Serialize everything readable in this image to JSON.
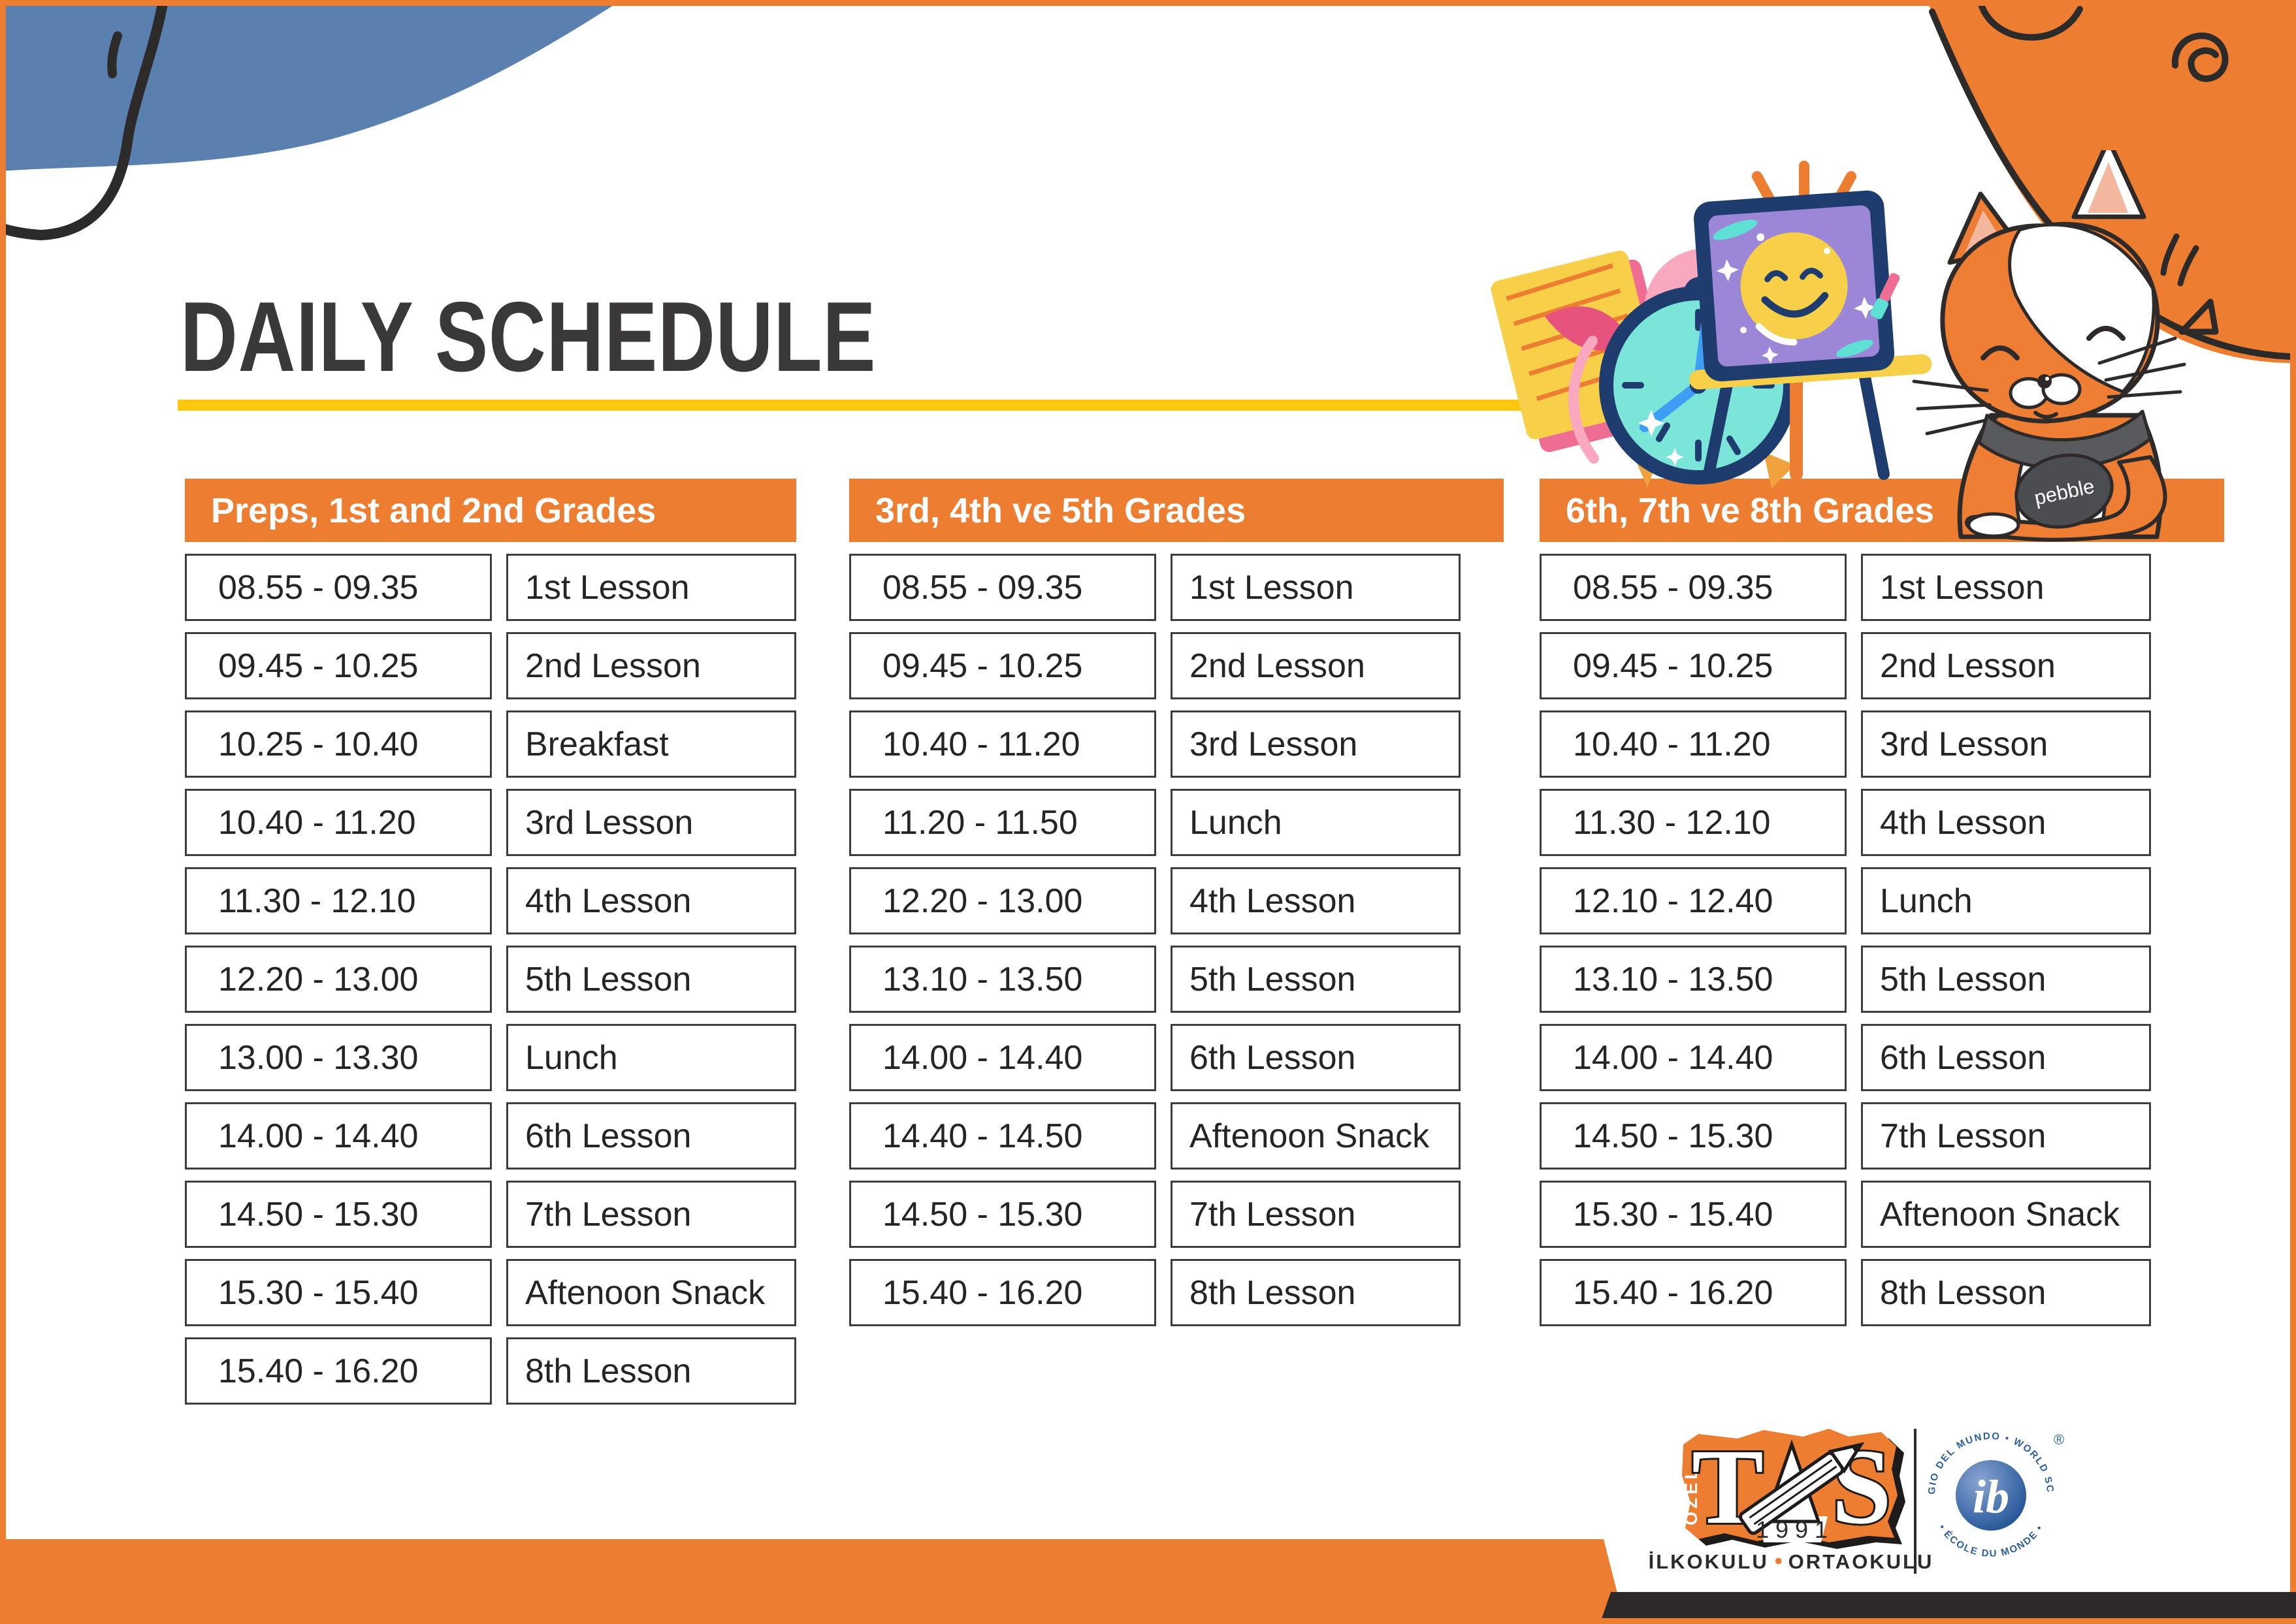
{
  "title": "DAILY SCHEDULE",
  "tables": [
    {
      "header": "Preps, 1st and 2nd Grades",
      "rows": [
        {
          "time": "08.55 - 09.35",
          "activity": "1st Lesson"
        },
        {
          "time": "09.45 - 10.25",
          "activity": "2nd Lesson"
        },
        {
          "time": "10.25 - 10.40",
          "activity": "Breakfast"
        },
        {
          "time": "10.40 - 11.20",
          "activity": "3rd Lesson"
        },
        {
          "time": "11.30 - 12.10",
          "activity": "4th Lesson"
        },
        {
          "time": "12.20 - 13.00",
          "activity": "5th Lesson"
        },
        {
          "time": "13.00 - 13.30",
          "activity": "Lunch"
        },
        {
          "time": "14.00 - 14.40",
          "activity": "6th Lesson"
        },
        {
          "time": "14.50 - 15.30",
          "activity": "7th Lesson"
        },
        {
          "time": "15.30 - 15.40",
          "activity": "Aftenoon Snack"
        },
        {
          "time": "15.40 - 16.20",
          "activity": "8th Lesson"
        }
      ]
    },
    {
      "header": "3rd, 4th ve 5th Grades",
      "rows": [
        {
          "time": "08.55 - 09.35",
          "activity": "1st Lesson"
        },
        {
          "time": "09.45 - 10.25",
          "activity": "2nd Lesson"
        },
        {
          "time": "10.40 - 11.20",
          "activity": "3rd Lesson"
        },
        {
          "time": "11.20 - 11.50",
          "activity": "Lunch"
        },
        {
          "time": "12.20 - 13.00",
          "activity": "4th Lesson"
        },
        {
          "time": "13.10 - 13.50",
          "activity": "5th Lesson"
        },
        {
          "time": "14.00 - 14.40",
          "activity": "6th Lesson"
        },
        {
          "time": "14.40 - 14.50",
          "activity": "Aftenoon Snack"
        },
        {
          "time": "14.50 - 15.30",
          "activity": "7th Lesson"
        },
        {
          "time": "15.40 - 16.20",
          "activity": "8th Lesson"
        }
      ]
    },
    {
      "header": "6th, 7th ve 8th Grades",
      "rows": [
        {
          "time": "08.55 - 09.35",
          "activity": "1st Lesson"
        },
        {
          "time": "09.45 - 10.25",
          "activity": "2nd Lesson"
        },
        {
          "time": "10.40 - 11.20",
          "activity": "3rd Lesson"
        },
        {
          "time": "11.30 - 12.10",
          "activity": "4th Lesson"
        },
        {
          "time": "12.10 - 12.40",
          "activity": "Lunch"
        },
        {
          "time": "13.10 - 13.50",
          "activity": "5th Lesson"
        },
        {
          "time": "14.00 - 14.40",
          "activity": "6th Lesson"
        },
        {
          "time": "14.50 - 15.30",
          "activity": "7th Lesson"
        },
        {
          "time": "15.30 - 15.40",
          "activity": "Aftenoon Snack"
        },
        {
          "time": "15.40 - 16.20",
          "activity": "8th Lesson"
        }
      ]
    }
  ],
  "footer": {
    "ozel": "ÖZEL",
    "tas_t": "T",
    "tas_s": "S",
    "year": "1991",
    "school_left": "İLKOKULU",
    "dot": "•",
    "school_right": "ORTAOKULU",
    "ib_ring_top": "COLEGIO DEL MUNDO • WORLD SCHOOL",
    "ib_ring_bottom": "• ÉCOLE DU MONDE •",
    "ib_monogram": "ib",
    "ib_registered": "®"
  },
  "decor": {
    "cat_tag": "pebble"
  },
  "colors": {
    "orange": "#ed7d31",
    "yellow": "#fcc70d",
    "blue_blob": "#5a80b0",
    "navy": "#1e3d6e",
    "teal": "#7ce5da",
    "purple": "#9c86d8",
    "pink": "#f9a8c0",
    "crimson": "#e8537d",
    "dark": "#2d292a",
    "ib_blue": "#2d5f9f"
  }
}
